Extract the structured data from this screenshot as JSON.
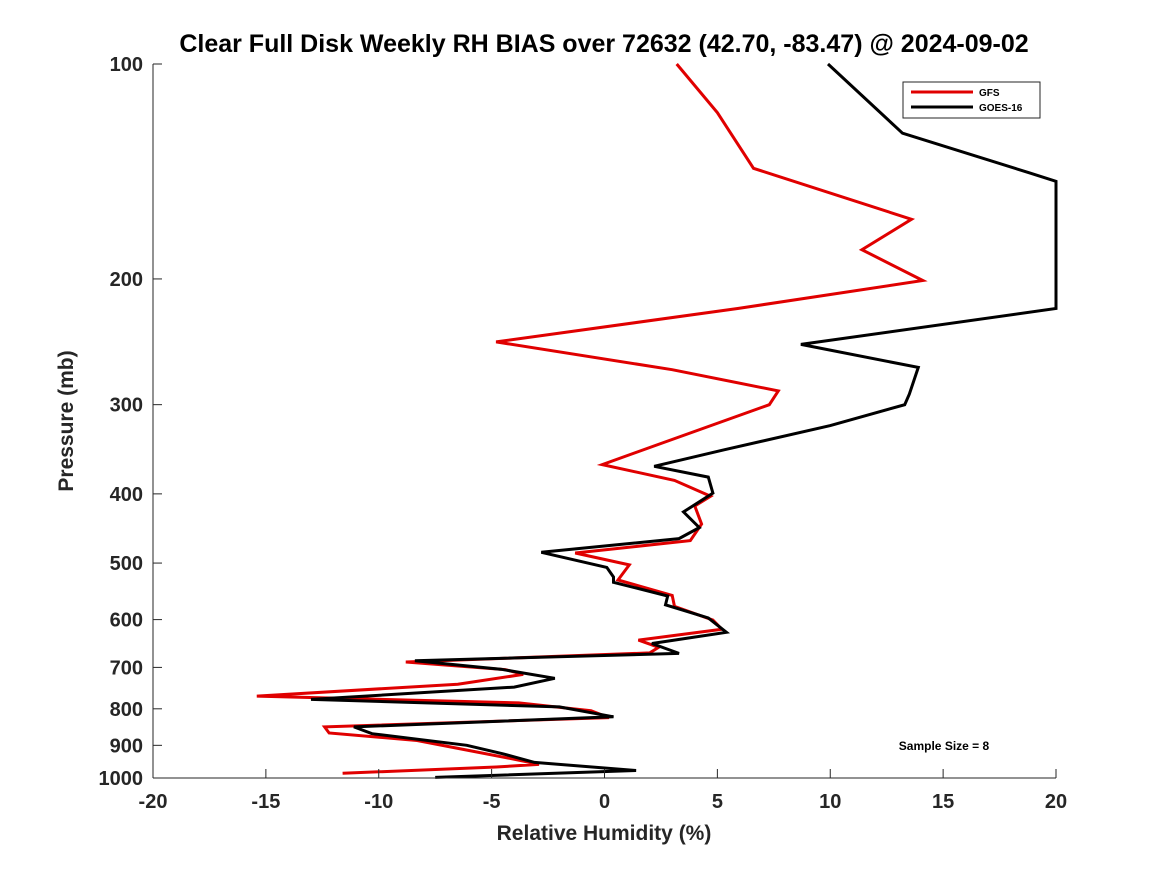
{
  "chart_data": {
    "type": "line",
    "title": "Clear Full Disk Weekly RH BIAS over 72632 (42.70, -83.47) @ 2024-09-02",
    "xlabel": "Relative Humidity (%)",
    "ylabel": "Pressure (mb)",
    "xlim": [
      -20,
      20
    ],
    "ylim": [
      1000,
      100
    ],
    "yscale": "log",
    "y_reversed": true,
    "grid": false,
    "legend_position": "top-right",
    "xticks": [
      -20,
      -15,
      -10,
      -5,
      0,
      5,
      10,
      15,
      20
    ],
    "yticks": [
      100,
      200,
      300,
      400,
      500,
      600,
      700,
      800,
      900,
      1000
    ],
    "annotation": "Sample Size = 8",
    "series": [
      {
        "name": "GFS",
        "color": "#e00000",
        "points": [
          [
            3.2,
            100
          ],
          [
            5.0,
            117
          ],
          [
            6.6,
            140
          ],
          [
            13.6,
            165
          ],
          [
            11.4,
            182
          ],
          [
            14.1,
            201
          ],
          [
            5.9,
            220
          ],
          [
            -4.8,
            245
          ],
          [
            3.0,
            268
          ],
          [
            7.7,
            287
          ],
          [
            7.3,
            300
          ],
          [
            2.5,
            340
          ],
          [
            -0.1,
            364
          ],
          [
            3.1,
            383
          ],
          [
            4.7,
            403
          ],
          [
            4.0,
            416
          ],
          [
            4.3,
            441
          ],
          [
            3.8,
            465
          ],
          [
            -1.3,
            484
          ],
          [
            1.1,
            503
          ],
          [
            0.6,
            528
          ],
          [
            3.0,
            555
          ],
          [
            3.1,
            575
          ],
          [
            4.8,
            601
          ],
          [
            5.2,
            619
          ],
          [
            1.5,
            641
          ],
          [
            2.4,
            656
          ],
          [
            2.0,
            668
          ],
          [
            -8.8,
            688
          ],
          [
            -4.4,
            705
          ],
          [
            -3.6,
            716
          ],
          [
            -6.5,
            739
          ],
          [
            -15.4,
            768
          ],
          [
            -3.8,
            785
          ],
          [
            -0.6,
            805
          ],
          [
            0.2,
            823
          ],
          [
            -12.4,
            848
          ],
          [
            -12.2,
            865
          ],
          [
            -8.3,
            886
          ],
          [
            -6.0,
            915
          ],
          [
            -3.8,
            944
          ],
          [
            -2.9,
            957
          ],
          [
            -4.8,
            965
          ],
          [
            -11.6,
            985
          ]
        ]
      },
      {
        "name": "GOES-16",
        "color": "#000000",
        "points": [
          [
            9.9,
            100
          ],
          [
            13.2,
            125
          ],
          [
            18.8,
            142
          ],
          [
            20.0,
            146
          ],
          [
            20.0,
            220
          ],
          [
            8.7,
            247
          ],
          [
            13.9,
            266
          ],
          [
            13.5,
            290
          ],
          [
            13.3,
            300
          ],
          [
            10.0,
            321
          ],
          [
            5.3,
            347
          ],
          [
            2.2,
            366
          ],
          [
            4.6,
            379
          ],
          [
            4.8,
            399
          ],
          [
            3.5,
            424
          ],
          [
            4.2,
            446
          ],
          [
            3.3,
            462
          ],
          [
            -2.8,
            483
          ],
          [
            0.1,
            507
          ],
          [
            0.4,
            523
          ],
          [
            0.4,
            532
          ],
          [
            2.8,
            556
          ],
          [
            2.7,
            572
          ],
          [
            4.6,
            597
          ],
          [
            5.4,
            625
          ],
          [
            2.1,
            648
          ],
          [
            3.3,
            669
          ],
          [
            -8.4,
            685
          ],
          [
            -4.6,
            704
          ],
          [
            -2.2,
            725
          ],
          [
            -4.0,
            746
          ],
          [
            -13.0,
            776
          ],
          [
            -2.0,
            795
          ],
          [
            0.4,
            821
          ],
          [
            -11.1,
            848
          ],
          [
            -10.3,
            867
          ],
          [
            -6.1,
            900
          ],
          [
            -4.5,
            925
          ],
          [
            -3.1,
            951
          ],
          [
            1.4,
            976
          ],
          [
            -7.5,
            998
          ]
        ]
      }
    ]
  }
}
